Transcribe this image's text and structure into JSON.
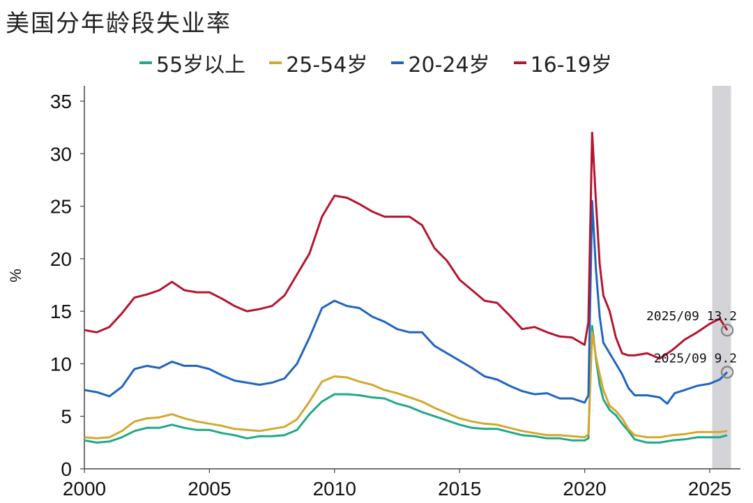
{
  "chart_data": {
    "type": "line",
    "title": "美国分年龄段失业率",
    "xlabel": "",
    "ylabel": "%",
    "xlim": [
      2000,
      2025.95
    ],
    "ylim": [
      0,
      35
    ],
    "xticks": [
      2000,
      2005,
      2010,
      2015,
      2020,
      2025
    ],
    "yticks": [
      0,
      5,
      10,
      15,
      20,
      25,
      30,
      35
    ],
    "legend_position": "top",
    "highlight_band": {
      "from": 2025.1,
      "to": 2025.85,
      "color": "#d4d4d8"
    },
    "series": [
      {
        "name": "55岁以上",
        "color": "#1fa88a",
        "points": [
          [
            2000.0,
            2.7
          ],
          [
            2000.5,
            2.5
          ],
          [
            2001.0,
            2.6
          ],
          [
            2001.5,
            3.0
          ],
          [
            2002.0,
            3.6
          ],
          [
            2002.5,
            3.9
          ],
          [
            2003.0,
            3.9
          ],
          [
            2003.5,
            4.2
          ],
          [
            2004.0,
            3.9
          ],
          [
            2004.5,
            3.7
          ],
          [
            2005.0,
            3.7
          ],
          [
            2005.5,
            3.4
          ],
          [
            2006.0,
            3.2
          ],
          [
            2006.5,
            2.9
          ],
          [
            2007.0,
            3.1
          ],
          [
            2007.5,
            3.1
          ],
          [
            2008.0,
            3.2
          ],
          [
            2008.5,
            3.7
          ],
          [
            2009.0,
            5.2
          ],
          [
            2009.5,
            6.4
          ],
          [
            2010.0,
            7.1
          ],
          [
            2010.5,
            7.1
          ],
          [
            2011.0,
            7.0
          ],
          [
            2011.5,
            6.8
          ],
          [
            2012.0,
            6.7
          ],
          [
            2012.5,
            6.2
          ],
          [
            2013.0,
            5.9
          ],
          [
            2013.5,
            5.4
          ],
          [
            2014.0,
            5.0
          ],
          [
            2014.5,
            4.6
          ],
          [
            2015.0,
            4.2
          ],
          [
            2015.5,
            3.9
          ],
          [
            2016.0,
            3.8
          ],
          [
            2016.5,
            3.8
          ],
          [
            2017.0,
            3.5
          ],
          [
            2017.5,
            3.2
          ],
          [
            2018.0,
            3.1
          ],
          [
            2018.5,
            2.9
          ],
          [
            2019.0,
            2.9
          ],
          [
            2019.5,
            2.7
          ],
          [
            2020.0,
            2.7
          ],
          [
            2020.15,
            2.9
          ],
          [
            2020.3,
            13.6
          ],
          [
            2020.45,
            10.5
          ],
          [
            2020.6,
            8.0
          ],
          [
            2020.75,
            6.6
          ],
          [
            2021.0,
            5.6
          ],
          [
            2021.25,
            5.1
          ],
          [
            2021.5,
            4.3
          ],
          [
            2021.75,
            3.6
          ],
          [
            2022.0,
            2.8
          ],
          [
            2022.5,
            2.5
          ],
          [
            2023.0,
            2.5
          ],
          [
            2023.5,
            2.7
          ],
          [
            2024.0,
            2.8
          ],
          [
            2024.5,
            3.0
          ],
          [
            2025.0,
            3.0
          ],
          [
            2025.4,
            3.0
          ],
          [
            2025.7,
            3.2
          ]
        ]
      },
      {
        "name": "25-54岁",
        "color": "#d4a72c",
        "points": [
          [
            2000.0,
            3.0
          ],
          [
            2000.5,
            2.9
          ],
          [
            2001.0,
            3.0
          ],
          [
            2001.5,
            3.6
          ],
          [
            2002.0,
            4.5
          ],
          [
            2002.5,
            4.8
          ],
          [
            2003.0,
            4.9
          ],
          [
            2003.5,
            5.2
          ],
          [
            2004.0,
            4.8
          ],
          [
            2004.5,
            4.5
          ],
          [
            2005.0,
            4.3
          ],
          [
            2005.5,
            4.1
          ],
          [
            2006.0,
            3.8
          ],
          [
            2006.5,
            3.7
          ],
          [
            2007.0,
            3.6
          ],
          [
            2007.5,
            3.8
          ],
          [
            2008.0,
            4.0
          ],
          [
            2008.5,
            4.7
          ],
          [
            2009.0,
            6.4
          ],
          [
            2009.5,
            8.3
          ],
          [
            2010.0,
            8.8
          ],
          [
            2010.5,
            8.7
          ],
          [
            2011.0,
            8.3
          ],
          [
            2011.5,
            8.0
          ],
          [
            2012.0,
            7.5
          ],
          [
            2012.5,
            7.2
          ],
          [
            2013.0,
            6.8
          ],
          [
            2013.5,
            6.4
          ],
          [
            2014.0,
            5.8
          ],
          [
            2014.5,
            5.3
          ],
          [
            2015.0,
            4.8
          ],
          [
            2015.5,
            4.5
          ],
          [
            2016.0,
            4.3
          ],
          [
            2016.5,
            4.2
          ],
          [
            2017.0,
            3.9
          ],
          [
            2017.5,
            3.6
          ],
          [
            2018.0,
            3.4
          ],
          [
            2018.5,
            3.2
          ],
          [
            2019.0,
            3.2
          ],
          [
            2019.5,
            3.1
          ],
          [
            2020.0,
            3.0
          ],
          [
            2020.15,
            3.3
          ],
          [
            2020.3,
            13.0
          ],
          [
            2020.45,
            10.7
          ],
          [
            2020.6,
            9.0
          ],
          [
            2020.75,
            7.5
          ],
          [
            2021.0,
            6.0
          ],
          [
            2021.25,
            5.5
          ],
          [
            2021.5,
            4.8
          ],
          [
            2021.75,
            3.8
          ],
          [
            2022.0,
            3.2
          ],
          [
            2022.5,
            3.0
          ],
          [
            2023.0,
            3.0
          ],
          [
            2023.5,
            3.2
          ],
          [
            2024.0,
            3.3
          ],
          [
            2024.5,
            3.5
          ],
          [
            2025.0,
            3.5
          ],
          [
            2025.4,
            3.5
          ],
          [
            2025.7,
            3.6
          ]
        ]
      },
      {
        "name": "20-24岁",
        "color": "#1f64c0",
        "points": [
          [
            2000.0,
            7.5
          ],
          [
            2000.5,
            7.3
          ],
          [
            2001.0,
            6.9
          ],
          [
            2001.5,
            7.8
          ],
          [
            2002.0,
            9.5
          ],
          [
            2002.5,
            9.8
          ],
          [
            2003.0,
            9.6
          ],
          [
            2003.5,
            10.2
          ],
          [
            2004.0,
            9.8
          ],
          [
            2004.5,
            9.8
          ],
          [
            2005.0,
            9.5
          ],
          [
            2005.5,
            8.9
          ],
          [
            2006.0,
            8.4
          ],
          [
            2006.5,
            8.2
          ],
          [
            2007.0,
            8.0
          ],
          [
            2007.5,
            8.2
          ],
          [
            2008.0,
            8.6
          ],
          [
            2008.5,
            10.0
          ],
          [
            2009.0,
            12.5
          ],
          [
            2009.5,
            15.3
          ],
          [
            2010.0,
            16.0
          ],
          [
            2010.5,
            15.5
          ],
          [
            2011.0,
            15.3
          ],
          [
            2011.5,
            14.5
          ],
          [
            2012.0,
            14.0
          ],
          [
            2012.5,
            13.3
          ],
          [
            2013.0,
            13.0
          ],
          [
            2013.5,
            13.0
          ],
          [
            2014.0,
            11.7
          ],
          [
            2014.5,
            11.0
          ],
          [
            2015.0,
            10.3
          ],
          [
            2015.5,
            9.6
          ],
          [
            2016.0,
            8.8
          ],
          [
            2016.5,
            8.5
          ],
          [
            2017.0,
            7.9
          ],
          [
            2017.5,
            7.4
          ],
          [
            2018.0,
            7.1
          ],
          [
            2018.5,
            7.2
          ],
          [
            2019.0,
            6.7
          ],
          [
            2019.5,
            6.7
          ],
          [
            2020.0,
            6.3
          ],
          [
            2020.15,
            7.0
          ],
          [
            2020.3,
            25.5
          ],
          [
            2020.45,
            19.0
          ],
          [
            2020.6,
            14.5
          ],
          [
            2020.75,
            12.0
          ],
          [
            2021.0,
            11.0
          ],
          [
            2021.25,
            10.0
          ],
          [
            2021.5,
            9.0
          ],
          [
            2021.75,
            7.7
          ],
          [
            2022.0,
            7.0
          ],
          [
            2022.5,
            7.0
          ],
          [
            2023.0,
            6.8
          ],
          [
            2023.3,
            6.2
          ],
          [
            2023.6,
            7.2
          ],
          [
            2024.0,
            7.5
          ],
          [
            2024.5,
            7.9
          ],
          [
            2025.0,
            8.1
          ],
          [
            2025.4,
            8.5
          ],
          [
            2025.7,
            9.2
          ]
        ]
      },
      {
        "name": "16-19岁",
        "color": "#b5142e",
        "points": [
          [
            2000.0,
            13.2
          ],
          [
            2000.5,
            13.0
          ],
          [
            2001.0,
            13.5
          ],
          [
            2001.5,
            14.8
          ],
          [
            2002.0,
            16.3
          ],
          [
            2002.5,
            16.6
          ],
          [
            2003.0,
            17.0
          ],
          [
            2003.5,
            17.8
          ],
          [
            2004.0,
            17.0
          ],
          [
            2004.5,
            16.8
          ],
          [
            2005.0,
            16.8
          ],
          [
            2005.5,
            16.2
          ],
          [
            2006.0,
            15.5
          ],
          [
            2006.5,
            15.0
          ],
          [
            2007.0,
            15.2
          ],
          [
            2007.5,
            15.5
          ],
          [
            2008.0,
            16.5
          ],
          [
            2008.5,
            18.5
          ],
          [
            2009.0,
            20.5
          ],
          [
            2009.5,
            24.0
          ],
          [
            2010.0,
            26.0
          ],
          [
            2010.5,
            25.8
          ],
          [
            2011.0,
            25.2
          ],
          [
            2011.5,
            24.5
          ],
          [
            2012.0,
            24.0
          ],
          [
            2012.5,
            24.0
          ],
          [
            2013.0,
            24.0
          ],
          [
            2013.5,
            23.2
          ],
          [
            2014.0,
            21.0
          ],
          [
            2014.5,
            19.8
          ],
          [
            2015.0,
            18.0
          ],
          [
            2015.5,
            17.0
          ],
          [
            2016.0,
            16.0
          ],
          [
            2016.5,
            15.8
          ],
          [
            2017.0,
            14.6
          ],
          [
            2017.5,
            13.3
          ],
          [
            2018.0,
            13.5
          ],
          [
            2018.5,
            13.0
          ],
          [
            2019.0,
            12.6
          ],
          [
            2019.5,
            12.5
          ],
          [
            2020.0,
            11.8
          ],
          [
            2020.15,
            14.0
          ],
          [
            2020.3,
            32.0
          ],
          [
            2020.45,
            25.5
          ],
          [
            2020.6,
            19.5
          ],
          [
            2020.75,
            16.5
          ],
          [
            2021.0,
            15.0
          ],
          [
            2021.25,
            12.5
          ],
          [
            2021.5,
            11.0
          ],
          [
            2021.75,
            10.8
          ],
          [
            2022.0,
            10.8
          ],
          [
            2022.5,
            11.0
          ],
          [
            2023.0,
            10.5
          ],
          [
            2023.5,
            11.3
          ],
          [
            2024.0,
            12.3
          ],
          [
            2024.5,
            13.0
          ],
          [
            2025.0,
            13.8
          ],
          [
            2025.4,
            14.3
          ],
          [
            2025.7,
            13.2
          ]
        ]
      }
    ],
    "annotations": [
      {
        "text": "2025/09 13.2",
        "x": 2025.7,
        "y": 13.2
      },
      {
        "text": "2025/09 9.2",
        "x": 2025.7,
        "y": 9.2
      }
    ]
  }
}
